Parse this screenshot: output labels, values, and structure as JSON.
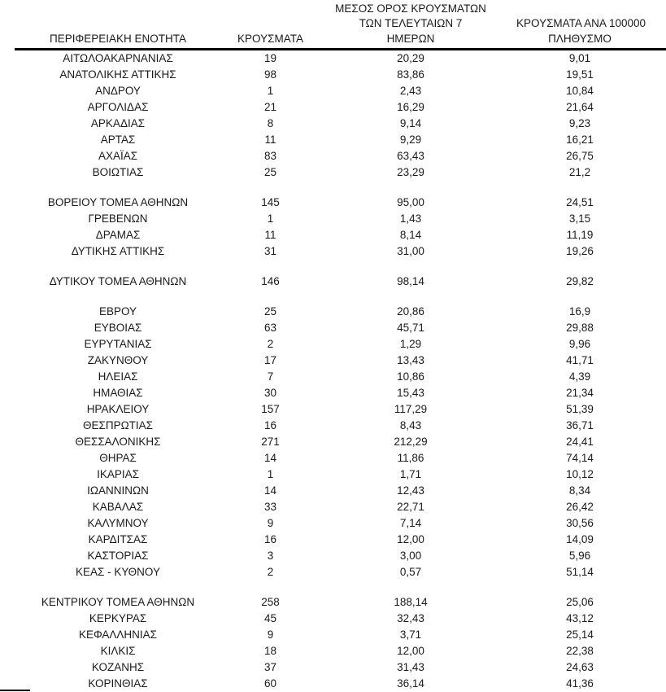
{
  "colors": {
    "text": "#1b1b1b",
    "divider": "#000000",
    "background": "#ffffff"
  },
  "table": {
    "header": {
      "col1": "ΠΕΡΙΦΕΡΕΙΑΚΗ ΕΝΟΤΗΤΑ",
      "col2": "ΚΡΟΥΣΜΑΤΑ",
      "col3_lines": [
        "ΜΕΣΟΣ ΟΡΟΣ ΚΡΟΥΣΜΑΤΩΝ",
        "ΤΩΝ ΤΕΛΕΥΤΑΙΩΝ 7",
        "ΗΜΕΡΩΝ"
      ],
      "col4_lines": [
        "ΚΡΟΥΣΜΑΤΑ ΑΝΑ 100000",
        "ΠΛΗΘΥΣΜΟ"
      ]
    },
    "sections": [
      {
        "rows": [
          {
            "region": "ΑΙΤΩΛΟΑΚΑΡΝΑΝΙΑΣ",
            "cases": "19",
            "avg7": "20,29",
            "per100k": "9,01"
          },
          {
            "region": "ΑΝΑΤΟΛΙΚΗΣ ΑΤΤΙΚΗΣ",
            "cases": "98",
            "avg7": "83,86",
            "per100k": "19,51"
          },
          {
            "region": "ΑΝΔΡΟΥ",
            "cases": "1",
            "avg7": "2,43",
            "per100k": "10,84"
          },
          {
            "region": "ΑΡΓΟΛΙΔΑΣ",
            "cases": "21",
            "avg7": "16,29",
            "per100k": "21,64"
          },
          {
            "region": "ΑΡΚΑΔΙΑΣ",
            "cases": "8",
            "avg7": "9,14",
            "per100k": "9,23"
          },
          {
            "region": "ΑΡΤΑΣ",
            "cases": "11",
            "avg7": "9,29",
            "per100k": "16,21"
          },
          {
            "region": "ΑΧΑΪΑΣ",
            "cases": "83",
            "avg7": "63,43",
            "per100k": "26,75"
          },
          {
            "region": "ΒΟΙΩΤΙΑΣ",
            "cases": "25",
            "avg7": "23,29",
            "per100k": "21,2"
          }
        ]
      },
      {
        "rows": [
          {
            "region": "ΒΟΡΕΙΟΥ ΤΟΜΕΑ ΑΘΗΝΩΝ",
            "cases": "145",
            "avg7": "95,00",
            "per100k": "24,51"
          },
          {
            "region": "ΓΡΕΒΕΝΩΝ",
            "cases": "1",
            "avg7": "1,43",
            "per100k": "3,15"
          },
          {
            "region": "ΔΡΑΜΑΣ",
            "cases": "11",
            "avg7": "8,14",
            "per100k": "11,19"
          },
          {
            "region": "ΔΥΤΙΚΗΣ ΑΤΤΙΚΗΣ",
            "cases": "31",
            "avg7": "31,00",
            "per100k": "19,26"
          }
        ]
      },
      {
        "rows": [
          {
            "region": "ΔΥΤΙΚΟΥ ΤΟΜΕΑ ΑΘΗΝΩΝ",
            "cases": "146",
            "avg7": "98,14",
            "per100k": "29,82"
          }
        ]
      },
      {
        "rows": [
          {
            "region": "ΕΒΡΟΥ",
            "cases": "25",
            "avg7": "20,86",
            "per100k": "16,9"
          },
          {
            "region": "ΕΥΒΟΙΑΣ",
            "cases": "63",
            "avg7": "45,71",
            "per100k": "29,88"
          },
          {
            "region": "ΕΥΡΥΤΑΝΙΑΣ",
            "cases": "2",
            "avg7": "1,29",
            "per100k": "9,96"
          },
          {
            "region": "ΖΑΚΥΝΘΟΥ",
            "cases": "17",
            "avg7": "13,43",
            "per100k": "41,71"
          },
          {
            "region": "ΗΛΕΙΑΣ",
            "cases": "7",
            "avg7": "10,86",
            "per100k": "4,39"
          },
          {
            "region": "ΗΜΑΘΙΑΣ",
            "cases": "30",
            "avg7": "15,43",
            "per100k": "21,34"
          },
          {
            "region": "ΗΡΑΚΛΕΙΟΥ",
            "cases": "157",
            "avg7": "117,29",
            "per100k": "51,39"
          },
          {
            "region": "ΘΕΣΠΡΩΤΙΑΣ",
            "cases": "16",
            "avg7": "8,43",
            "per100k": "36,71"
          },
          {
            "region": "ΘΕΣΣΑΛΟΝΙΚΗΣ",
            "cases": "271",
            "avg7": "212,29",
            "per100k": "24,41"
          },
          {
            "region": "ΘΗΡΑΣ",
            "cases": "14",
            "avg7": "11,86",
            "per100k": "74,14"
          },
          {
            "region": "ΙΚΑΡΙΑΣ",
            "cases": "1",
            "avg7": "1,71",
            "per100k": "10,12"
          },
          {
            "region": "ΙΩΑΝΝΙΝΩΝ",
            "cases": "14",
            "avg7": "12,43",
            "per100k": "8,34"
          },
          {
            "region": "ΚΑΒΑΛΑΣ",
            "cases": "33",
            "avg7": "22,71",
            "per100k": "26,42"
          },
          {
            "region": "ΚΑΛΥΜΝΟΥ",
            "cases": "9",
            "avg7": "7,14",
            "per100k": "30,56"
          },
          {
            "region": "ΚΑΡΔΙΤΣΑΣ",
            "cases": "16",
            "avg7": "12,00",
            "per100k": "14,09"
          },
          {
            "region": "ΚΑΣΤΟΡΙΑΣ",
            "cases": "3",
            "avg7": "3,00",
            "per100k": "5,96"
          },
          {
            "region": "ΚΕΑΣ - ΚΥΘΝΟΥ",
            "cases": "2",
            "avg7": "0,57",
            "per100k": "51,14"
          }
        ]
      },
      {
        "rows": [
          {
            "region": "ΚΕΝΤΡΙΚΟΥ ΤΟΜΕΑ ΑΘΗΝΩΝ",
            "cases": "258",
            "avg7": "188,14",
            "per100k": "25,06"
          },
          {
            "region": "ΚΕΡΚΥΡΑΣ",
            "cases": "45",
            "avg7": "32,43",
            "per100k": "43,12"
          },
          {
            "region": "ΚΕΦΑΛΛΗΝΙΑΣ",
            "cases": "9",
            "avg7": "3,71",
            "per100k": "25,14"
          },
          {
            "region": "ΚΙΛΚΙΣ",
            "cases": "18",
            "avg7": "12,00",
            "per100k": "22,38"
          },
          {
            "region": "ΚΟΖΑΝΗΣ",
            "cases": "37",
            "avg7": "31,43",
            "per100k": "24,63"
          },
          {
            "region": "ΚΟΡΙΝΘΙΑΣ",
            "cases": "60",
            "avg7": "36,14",
            "per100k": "41,36"
          }
        ]
      }
    ]
  }
}
